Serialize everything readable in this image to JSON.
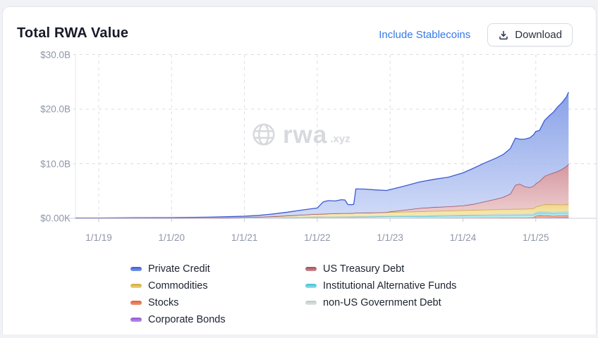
{
  "header": {
    "title": "Total RWA Value",
    "include_stablecoins_label": "Include Stablecoins",
    "download_label": "Download",
    "link_color": "#3479e8"
  },
  "icons": {
    "download": "download-icon",
    "watermark_globe": "globe-icon"
  },
  "watermark": {
    "name": "rwa",
    "suffix": ".xyz"
  },
  "chart_data": {
    "type": "area",
    "stacked": true,
    "title": "Total RWA Value",
    "xlabel": "",
    "ylabel": "",
    "ylim_billions": [
      0,
      30
    ],
    "grid": "dashed",
    "legend_position": "bottom",
    "y_ticks": [
      {
        "label": "$30.0B",
        "value": 30
      },
      {
        "label": "$20.0B",
        "value": 20
      },
      {
        "label": "$10.0B",
        "value": 10
      },
      {
        "label": "$0.00K",
        "value": 0
      }
    ],
    "x_ticks": [
      {
        "label": "1/1/19",
        "year": 2019
      },
      {
        "label": "1/1/20",
        "year": 2020
      },
      {
        "label": "1/1/21",
        "year": 2021
      },
      {
        "label": "1/1/22",
        "year": 2022
      },
      {
        "label": "1/1/23",
        "year": 2023
      },
      {
        "label": "1/1/24",
        "year": 2024
      },
      {
        "label": "1/1/25",
        "year": 2025
      }
    ],
    "x_years": [
      2018.68,
      2019.0,
      2019.5,
      2020.0,
      2020.5,
      2021.0,
      2021.2,
      2021.4,
      2021.6,
      2021.8,
      2022.0,
      2022.08,
      2022.15,
      2022.25,
      2022.33,
      2022.38,
      2022.42,
      2022.47,
      2022.5,
      2022.53,
      2022.65,
      2022.8,
      2022.95,
      2023.0,
      2023.2,
      2023.4,
      2023.6,
      2023.8,
      2024.0,
      2024.15,
      2024.3,
      2024.45,
      2024.55,
      2024.65,
      2024.72,
      2024.78,
      2024.85,
      2024.92,
      2024.97,
      2025.0,
      2025.05,
      2025.12,
      2025.18,
      2025.24,
      2025.3,
      2025.36,
      2025.42,
      2025.45
    ],
    "stack_order": [
      "Corporate Bonds",
      "Stocks",
      "Institutional Alternative Funds",
      "non-US Government Debt",
      "Commodities",
      "US Treasury Debt",
      "Private Credit"
    ],
    "series": [
      {
        "name": "Private Credit",
        "line": "#3b5bd6",
        "fill_top": "#7e99e6",
        "fill_bottom": "#c9d5f6",
        "values_billions": [
          0.02,
          0.03,
          0.05,
          0.08,
          0.12,
          0.2,
          0.3,
          0.45,
          0.65,
          0.9,
          1.1,
          2.2,
          2.4,
          2.3,
          2.5,
          2.45,
          1.6,
          1.55,
          1.6,
          4.4,
          4.35,
          4.15,
          4.0,
          4.05,
          4.4,
          4.8,
          5.1,
          5.4,
          6.0,
          6.6,
          7.1,
          7.5,
          7.8,
          8.3,
          8.6,
          8.2,
          8.7,
          9.1,
          9.4,
          9.6,
          9.3,
          10.2,
          10.7,
          11.1,
          11.8,
          12.2,
          12.7,
          13.2
        ]
      },
      {
        "name": "Commodities",
        "line": "#d2a83f",
        "fill_top": "#eed47c",
        "fill_bottom": "#f6e9b4",
        "values_billions": [
          0,
          0,
          0,
          0,
          0.02,
          0.08,
          0.12,
          0.2,
          0.3,
          0.4,
          0.5,
          0.52,
          0.55,
          0.58,
          0.6,
          0.6,
          0.6,
          0.61,
          0.61,
          0.62,
          0.63,
          0.65,
          0.67,
          0.68,
          0.7,
          0.75,
          0.78,
          0.8,
          0.82,
          0.84,
          0.86,
          0.88,
          0.9,
          0.91,
          0.92,
          0.92,
          0.93,
          0.95,
          0.97,
          1.0,
          1.05,
          1.3,
          1.33,
          1.35,
          1.3,
          1.28,
          1.26,
          1.25
        ]
      },
      {
        "name": "Stocks",
        "line": "#e0623d",
        "fill_top": "#ef9470",
        "fill_bottom": "#f7c5ab",
        "values_billions": [
          0,
          0,
          0,
          0,
          0,
          0.01,
          0.01,
          0.01,
          0.01,
          0.01,
          0.01,
          0.01,
          0.01,
          0.01,
          0.01,
          0.01,
          0.01,
          0.01,
          0.01,
          0.01,
          0.01,
          0.01,
          0.01,
          0.01,
          0.02,
          0.02,
          0.02,
          0.02,
          0.02,
          0.02,
          0.02,
          0.02,
          0.03,
          0.03,
          0.03,
          0.03,
          0.03,
          0.03,
          0.05,
          0.3,
          0.42,
          0.38,
          0.35,
          0.3,
          0.32,
          0.33,
          0.35,
          0.35
        ]
      },
      {
        "name": "Corporate Bonds",
        "line": "#9254d2",
        "fill_top": "#bc90ea",
        "fill_bottom": "#d9c2f4",
        "values_billions": [
          0,
          0,
          0,
          0,
          0,
          0.01,
          0.01,
          0.02,
          0.02,
          0.03,
          0.04,
          0.04,
          0.04,
          0.04,
          0.04,
          0.04,
          0.04,
          0.04,
          0.04,
          0.05,
          0.05,
          0.05,
          0.05,
          0.05,
          0.05,
          0.06,
          0.06,
          0.07,
          0.08,
          0.08,
          0.09,
          0.09,
          0.1,
          0.1,
          0.1,
          0.1,
          0.1,
          0.11,
          0.11,
          0.12,
          0.12,
          0.12,
          0.13,
          0.13,
          0.14,
          0.14,
          0.15,
          0.15
        ]
      },
      {
        "name": "US Treasury Debt",
        "line": "#a04a58",
        "fill_top": "#d08e96",
        "fill_bottom": "#ecc9cc",
        "values_billions": [
          0,
          0,
          0,
          0,
          0,
          0,
          0,
          0,
          0,
          0,
          0,
          0,
          0,
          0,
          0,
          0,
          0,
          0,
          0,
          0,
          0,
          0,
          0,
          0.1,
          0.35,
          0.6,
          0.7,
          0.75,
          0.85,
          1.1,
          1.5,
          1.9,
          2.2,
          2.8,
          4.4,
          4.6,
          4.1,
          3.9,
          4.1,
          4.2,
          4.5,
          5.2,
          5.5,
          5.8,
          6.1,
          6.5,
          7.0,
          7.4
        ]
      },
      {
        "name": "Institutional Alternative Funds",
        "line": "#41c0d4",
        "fill_top": "#93e0ea",
        "fill_bottom": "#c8f0f5",
        "values_billions": [
          0.04,
          0.04,
          0.05,
          0.05,
          0.06,
          0.08,
          0.09,
          0.1,
          0.12,
          0.15,
          0.18,
          0.18,
          0.19,
          0.19,
          0.2,
          0.2,
          0.2,
          0.21,
          0.21,
          0.22,
          0.23,
          0.25,
          0.27,
          0.28,
          0.29,
          0.3,
          0.33,
          0.35,
          0.38,
          0.39,
          0.4,
          0.42,
          0.43,
          0.43,
          0.44,
          0.44,
          0.45,
          0.45,
          0.46,
          0.48,
          0.48,
          0.49,
          0.5,
          0.5,
          0.51,
          0.51,
          0.52,
          0.52
        ]
      },
      {
        "name": "non-US Government Debt",
        "line": "#bcc9c8",
        "fill_top": "#dde6e5",
        "fill_bottom": "#eef3f2",
        "values_billions": [
          0,
          0,
          0,
          0,
          0,
          0.01,
          0.01,
          0.02,
          0.03,
          0.04,
          0.05,
          0.05,
          0.05,
          0.06,
          0.06,
          0.06,
          0.07,
          0.07,
          0.08,
          0.08,
          0.08,
          0.09,
          0.1,
          0.1,
          0.11,
          0.12,
          0.14,
          0.15,
          0.17,
          0.18,
          0.19,
          0.2,
          0.2,
          0.2,
          0.21,
          0.21,
          0.21,
          0.22,
          0.22,
          0.22,
          0.22,
          0.23,
          0.23,
          0.24,
          0.24,
          0.24,
          0.25,
          0.25
        ]
      }
    ],
    "legend_columns": [
      [
        "Private Credit",
        "Commodities",
        "Stocks",
        "Corporate Bonds"
      ],
      [
        "US Treasury Debt",
        "Institutional Alternative Funds",
        "non-US Government Debt"
      ]
    ]
  }
}
